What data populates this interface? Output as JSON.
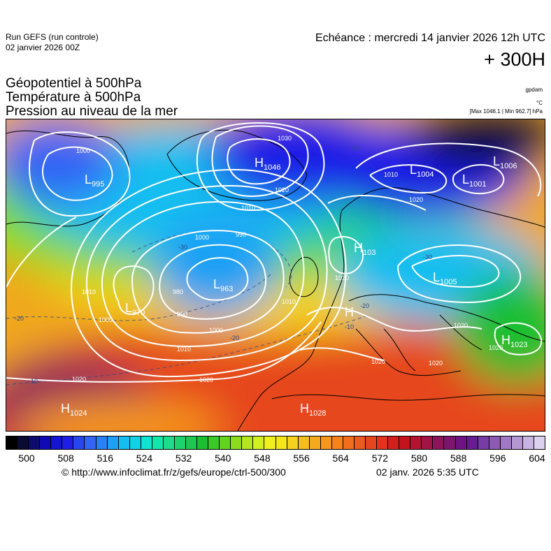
{
  "header": {
    "run_line1": "Run GEFS (run controle)",
    "run_line2": "02 janvier 2026 00Z",
    "echeance": "Echéance : mercredi 14 janvier 2026 12h UTC",
    "lead_time": "+ 300H",
    "title1": "Géopotentiel à 500hPa",
    "title2": "Température à 500hPa",
    "title3": "Pression au niveau de la mer",
    "unit_geopot": "gpdam",
    "unit_temp": "°C",
    "max_min": "[Max 1046.1 | Min 962.7] hPa"
  },
  "map": {
    "pressure_centers": [
      {
        "type": "H",
        "value": "1046"
      },
      {
        "type": "L",
        "value": "995"
      },
      {
        "type": "L",
        "value": "1004"
      },
      {
        "type": "L",
        "value": "1001"
      },
      {
        "type": "L",
        "value": "1006"
      },
      {
        "type": "L",
        "value": "963"
      },
      {
        "type": "L",
        "value": "970"
      },
      {
        "type": "H",
        "value": "103"
      },
      {
        "type": "L",
        "value": "1005"
      },
      {
        "type": "H",
        "value": ""
      },
      {
        "type": "H",
        "value": "1023"
      },
      {
        "type": "H",
        "value": "1024"
      },
      {
        "type": "H",
        "value": "1028"
      }
    ],
    "isobar_labels": [
      "1030",
      "1020",
      "1010",
      "1000",
      "990",
      "980",
      "1000",
      "990",
      "1000",
      "1010",
      "1020",
      "1020",
      "1010",
      "1020",
      "1020",
      "1010",
      "1000",
      "1010",
      "1020",
      "1020",
      "1020",
      "1020"
    ],
    "temp_labels": [
      "-30",
      "-20",
      "-10",
      "-30",
      "-20",
      "-10",
      "-20",
      "-30"
    ]
  },
  "colorbar": {
    "colors": [
      "#000000",
      "#0a0a32",
      "#0f0a6e",
      "#0f0ab4",
      "#1414d2",
      "#1e1ee6",
      "#2846f0",
      "#3264f5",
      "#2882f5",
      "#1ea0f5",
      "#14bef0",
      "#0fd2e6",
      "#0fe6d2",
      "#14e6aa",
      "#1edc8c",
      "#1ed26e",
      "#1ec850",
      "#1ebe32",
      "#3cc828",
      "#64d21e",
      "#8cdc1e",
      "#b4e61e",
      "#d2f01e",
      "#f0f01e",
      "#f5e61e",
      "#f5d21e",
      "#f5be1e",
      "#f5aa1e",
      "#f5961e",
      "#f5821e",
      "#f06e1e",
      "#eb5a1e",
      "#e6461e",
      "#e1321e",
      "#d21e1e",
      "#c3141e",
      "#b41432",
      "#a01446",
      "#8c145a",
      "#7d146e",
      "#6e1482",
      "#641e91",
      "#783ca5",
      "#8c5ab4",
      "#a078c3",
      "#b496d2",
      "#c8b4e1",
      "#dcd2f0"
    ],
    "tick_labels": [
      "500",
      "508",
      "516",
      "524",
      "532",
      "540",
      "548",
      "556",
      "564",
      "572",
      "580",
      "588",
      "596",
      "604"
    ]
  },
  "footer": {
    "credit": "© http://www.infoclimat.fr/z/gefs/europe/ctrl-500/300",
    "timestamp": "02 janv. 2026  5:35 UTC"
  },
  "colors": {
    "isobar": "#ffffff",
    "coastline": "#000000",
    "temp_isotherm": "#2a4a8a"
  }
}
